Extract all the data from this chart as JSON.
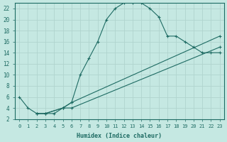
{
  "xlabel": "Humidex (Indice chaleur)",
  "xlim": [
    -0.5,
    23.5
  ],
  "ylim": [
    2,
    23
  ],
  "xticks": [
    0,
    1,
    2,
    3,
    4,
    5,
    6,
    7,
    8,
    9,
    10,
    11,
    12,
    13,
    14,
    15,
    16,
    17,
    18,
    19,
    20,
    21,
    22,
    23
  ],
  "yticks": [
    2,
    4,
    6,
    8,
    10,
    12,
    14,
    16,
    18,
    20,
    22
  ],
  "background_color": "#c5e8e2",
  "grid_color": "#b0d4ce",
  "line_color": "#1e6b63",
  "curve1_x": [
    0,
    1,
    2,
    3,
    4,
    5,
    6,
    7,
    8,
    9,
    10,
    11,
    12,
    13,
    14,
    15,
    16,
    17,
    18,
    19,
    20,
    21,
    22,
    23
  ],
  "curve1_y": [
    6,
    4,
    3,
    3,
    3,
    4,
    5,
    10,
    13,
    16,
    20,
    22,
    23,
    23,
    23,
    22,
    20.5,
    17,
    17,
    16,
    15,
    14,
    14,
    14
  ],
  "curve2_x": [
    2,
    3,
    5,
    6,
    23
  ],
  "curve2_y": [
    3,
    3,
    4,
    4,
    15
  ],
  "curve3_x": [
    2,
    3,
    5,
    6,
    23
  ],
  "curve3_y": [
    3,
    3,
    4,
    5,
    17
  ]
}
